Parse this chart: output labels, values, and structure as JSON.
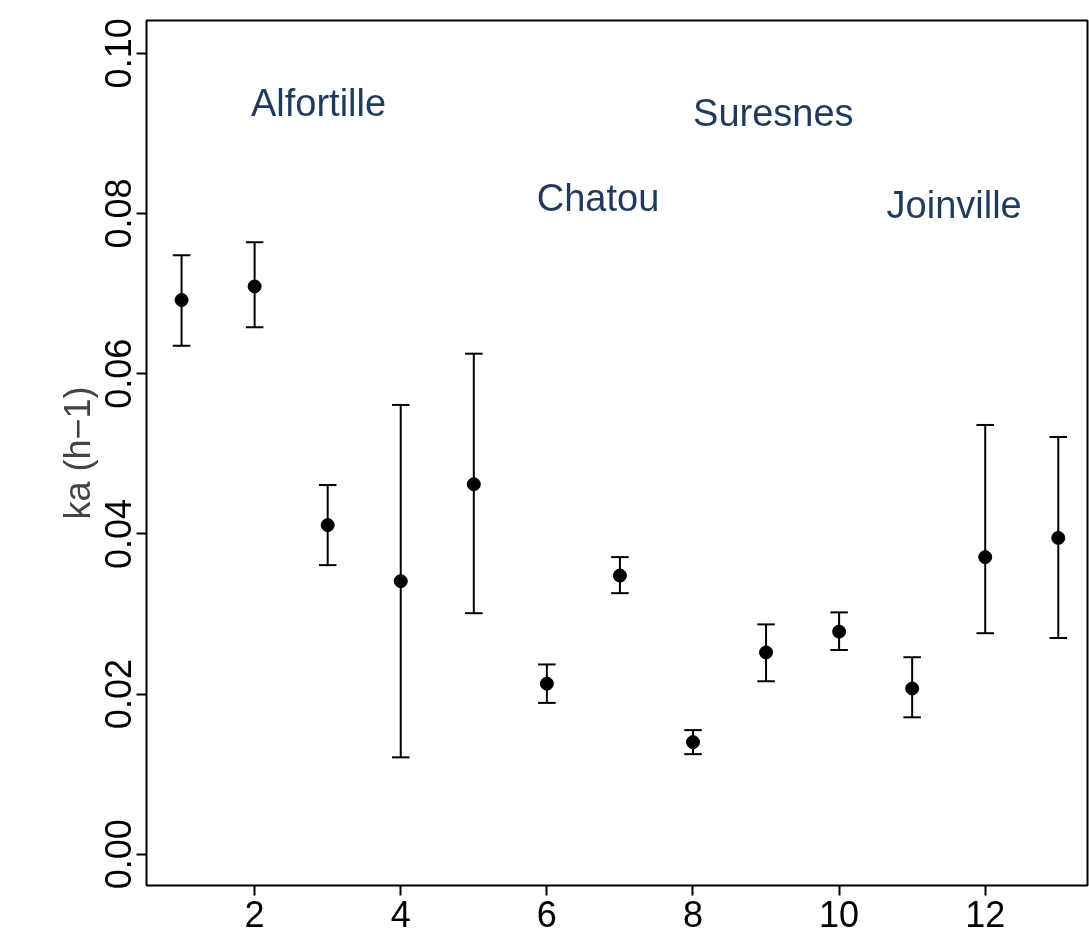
{
  "chart_data": {
    "type": "scatter",
    "ylabel": "ka (h−1)",
    "x": [
      1,
      2,
      3,
      4,
      5,
      6,
      7,
      8,
      9,
      10,
      11,
      12,
      13
    ],
    "values": [
      0.0692,
      0.0709,
      0.0411,
      0.0341,
      0.0462,
      0.0213,
      0.0348,
      0.014,
      0.0252,
      0.0278,
      0.0207,
      0.0371,
      0.0395
    ],
    "errors": [
      [
        0.0635,
        0.0748
      ],
      [
        0.0658,
        0.0764
      ],
      [
        0.0361,
        0.0461
      ],
      [
        0.0121,
        0.0561
      ],
      [
        0.0301,
        0.0625
      ],
      [
        0.0189,
        0.0237
      ],
      [
        0.0326,
        0.0371
      ],
      [
        0.0125,
        0.0155
      ],
      [
        0.0216,
        0.0287
      ],
      [
        0.0255,
        0.0302
      ],
      [
        0.0171,
        0.0246
      ],
      [
        0.0276,
        0.0536
      ],
      [
        0.027,
        0.0521
      ]
    ],
    "color": "#000000",
    "marker": "circle",
    "xlim": [
      0.52,
      13.4
    ],
    "ylim": [
      -0.0039,
      0.1041
    ],
    "xticks": [
      2,
      4,
      6,
      8,
      10,
      12
    ],
    "yticks": [
      {
        "value": 0,
        "label": "0.00"
      },
      {
        "value": 0.02,
        "label": "0.02"
      },
      {
        "value": 0.04,
        "label": "0.04"
      },
      {
        "value": 0.06,
        "label": "0.06"
      },
      {
        "value": 0.08,
        "label": "0.08"
      },
      {
        "value": 0.1,
        "label": "0.10"
      }
    ],
    "grid": false,
    "annotations": [
      "Alfortille",
      "Chatou",
      "Suresnes",
      "Joinville"
    ]
  }
}
